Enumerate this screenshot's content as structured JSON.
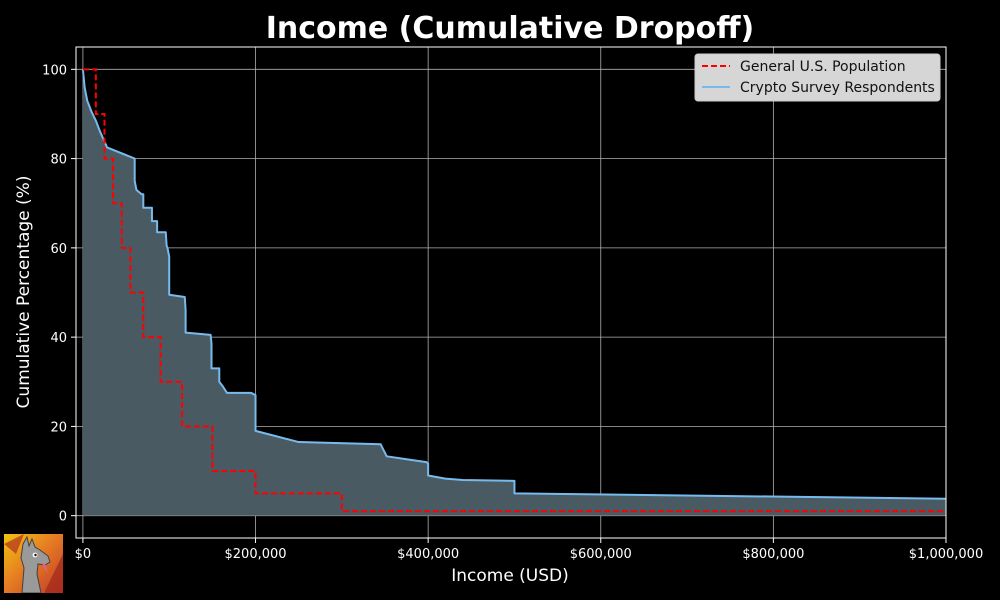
{
  "chart_data": {
    "type": "line",
    "title": "Income (Cumulative Dropoff)",
    "xlabel": "Income (USD)",
    "ylabel": "Cumulative Percentage (%)",
    "xlim": [
      -8000,
      1000000
    ],
    "ylim": [
      -5,
      105
    ],
    "xticks": [
      0,
      200000,
      400000,
      600000,
      800000,
      1000000
    ],
    "xtick_labels": [
      "$0",
      "$200,000",
      "$400,000",
      "$600,000",
      "$800,000",
      "$1,000,000"
    ],
    "yticks": [
      0,
      20,
      40,
      60,
      80,
      100
    ],
    "ytick_labels": [
      "0",
      "20",
      "40",
      "60",
      "80",
      "100"
    ],
    "grid": true,
    "legend_position": "top-right",
    "series": [
      {
        "name": "General U.S. Population",
        "style": "dashed-step",
        "color": "#ff0000",
        "x": [
          0,
          15000,
          15000,
          25000,
          25000,
          35000,
          35000,
          45000,
          45000,
          55000,
          55000,
          70000,
          70000,
          90000,
          90000,
          115000,
          115000,
          150000,
          150000,
          200000,
          200000,
          300000,
          300000,
          1000000
        ],
        "values": [
          100,
          100,
          90,
          90,
          80,
          80,
          70,
          70,
          60,
          60,
          50,
          50,
          40,
          40,
          30,
          30,
          20,
          20,
          10,
          10,
          5,
          5,
          1,
          1
        ]
      },
      {
        "name": "Crypto Survey Respondents",
        "style": "solid-filled",
        "color": "#77bbee",
        "fill_color": "#4a5a62",
        "x": [
          0,
          2000,
          5000,
          10000,
          15000,
          20000,
          28000,
          60000,
          60000,
          62000,
          68000,
          70000,
          70000,
          80000,
          80000,
          86000,
          86000,
          96000,
          97000,
          98000,
          100000,
          100000,
          118000,
          119000,
          119000,
          148000,
          149000,
          149000,
          158000,
          158000,
          162000,
          167000,
          195000,
          200000,
          200000,
          250000,
          345000,
          352000,
          380000,
          398000,
          400000,
          400000,
          420000,
          440000,
          500000,
          500000,
          1000000
        ],
        "values": [
          100,
          96,
          93,
          90.5,
          88.5,
          86,
          82.5,
          80,
          75,
          73,
          72,
          72,
          69,
          69,
          66,
          66,
          63.5,
          63.5,
          60.5,
          60,
          58,
          49.5,
          49,
          46,
          41,
          40.5,
          38.5,
          33,
          33,
          30,
          29,
          27.5,
          27.5,
          27,
          19,
          16.5,
          16,
          13.3,
          12.5,
          12,
          11.7,
          9,
          8.3,
          8,
          7.8,
          5,
          3.8
        ]
      }
    ]
  },
  "logo": {
    "icon": "llama-avatar-icon",
    "colors": [
      "#c0392b",
      "#e67e22",
      "#f1c40f",
      "#8e8e8e"
    ]
  }
}
